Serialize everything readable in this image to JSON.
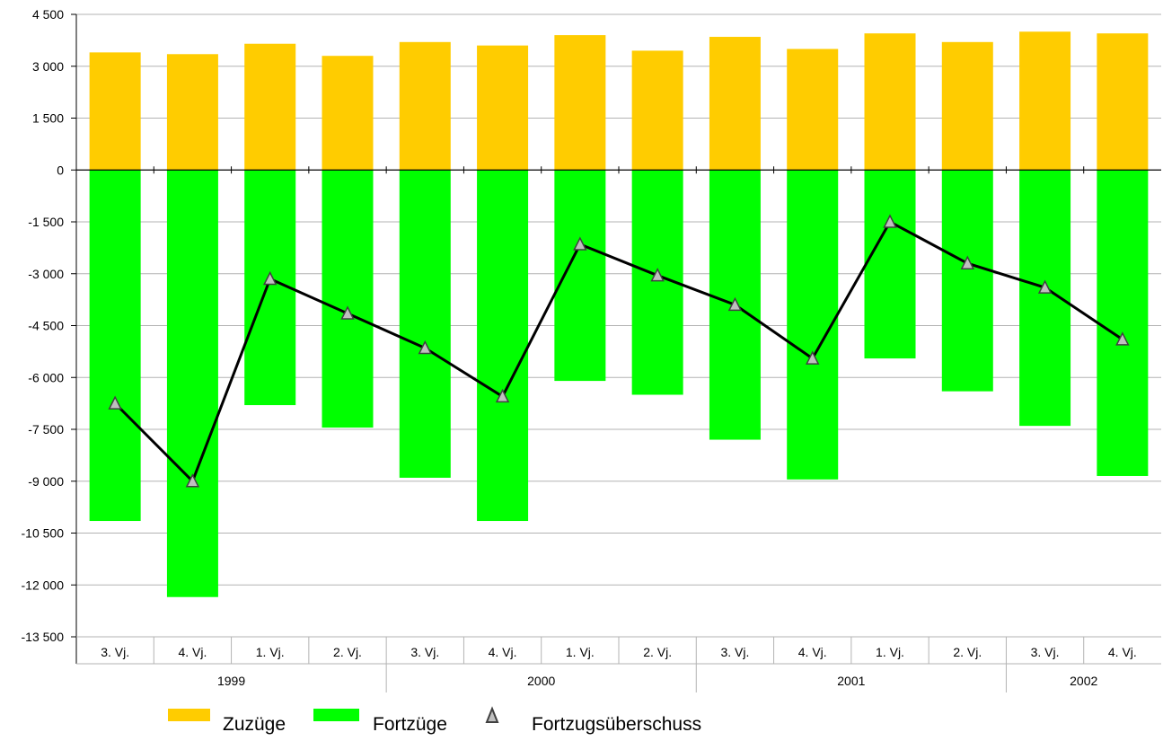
{
  "chart_data": {
    "type": "bar",
    "title": "",
    "xlabel": "",
    "ylabel": "",
    "ylim": [
      -13500,
      4500
    ],
    "ytick_step": 1500,
    "y_tick_labels": [
      "4 500",
      "3 000",
      "1 500",
      "0",
      "-1 500",
      "-3 000",
      "-4 500",
      "-6 000",
      "-7 500",
      "-9 000",
      "-10 500",
      "-12 000",
      "-13 500"
    ],
    "grid": true,
    "categories": [
      "3. Vj.",
      "4. Vj.",
      "1. Vj.",
      "2. Vj.",
      "3. Vj.",
      "4. Vj.",
      "1. Vj.",
      "2. Vj.",
      "3. Vj.",
      "4. Vj.",
      "1. Vj.",
      "2. Vj.",
      "3. Vj.",
      "4. Vj."
    ],
    "groups": [
      {
        "label": "1999",
        "span": 4
      },
      {
        "label": "2000",
        "span": 4
      },
      {
        "label": "2001",
        "span": 4
      },
      {
        "label": "2002",
        "span": 2
      }
    ],
    "series": [
      {
        "name": "Zuzüge",
        "kind": "bar",
        "color": "#FFCC00",
        "values": [
          3400,
          3350,
          3650,
          3300,
          3700,
          3600,
          3900,
          3450,
          3850,
          3500,
          3950,
          3700,
          4000,
          3950
        ]
      },
      {
        "name": "Fortzüge",
        "kind": "bar",
        "color": "#00FF00",
        "values": [
          -10150,
          -12350,
          -6800,
          -7450,
          -8900,
          -10150,
          -6100,
          -6500,
          -7800,
          -8950,
          -5450,
          -6400,
          -7400,
          -8850
        ]
      },
      {
        "name": "Fortzugsüberschuss",
        "kind": "line",
        "color": "#000000",
        "marker_color": "#BFBFBF",
        "values": [
          -6750,
          -9000,
          -3150,
          -4150,
          -5150,
          -6550,
          -2150,
          -3050,
          -3900,
          -5450,
          -1500,
          -2700,
          -3400,
          -4900
        ]
      }
    ],
    "legend_position": "bottom"
  }
}
